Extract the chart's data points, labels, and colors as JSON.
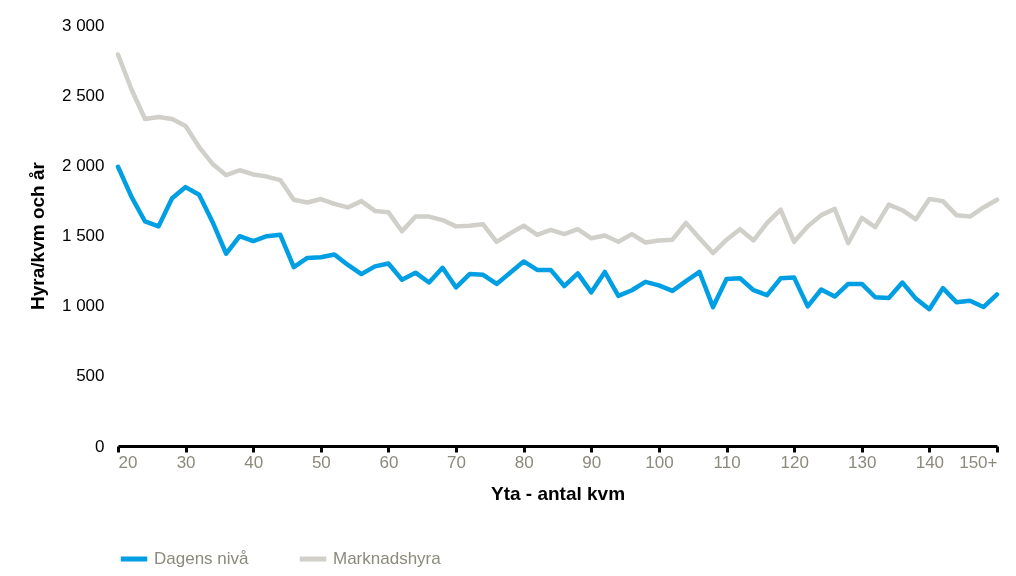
{
  "chart_data": {
    "type": "line",
    "xlabel": "Yta - antal kvm",
    "ylabel": "Hyra/kvm och år",
    "x": [
      20,
      22,
      24,
      26,
      28,
      30,
      32,
      34,
      36,
      38,
      40,
      42,
      44,
      46,
      48,
      50,
      52,
      54,
      56,
      58,
      60,
      62,
      64,
      66,
      68,
      70,
      72,
      74,
      76,
      78,
      80,
      82,
      84,
      86,
      88,
      90,
      92,
      94,
      96,
      98,
      100,
      102,
      104,
      106,
      108,
      110,
      112,
      114,
      116,
      118,
      120,
      122,
      124,
      126,
      128,
      130,
      132,
      134,
      136,
      138,
      140,
      142,
      144,
      146,
      148,
      150
    ],
    "series": [
      {
        "name": "Dagens nivå",
        "color": "#009fe3",
        "values": [
          1990,
          1775,
          1600,
          1565,
          1765,
          1845,
          1790,
          1595,
          1370,
          1495,
          1460,
          1495,
          1505,
          1275,
          1340,
          1345,
          1365,
          1290,
          1225,
          1280,
          1300,
          1185,
          1235,
          1165,
          1270,
          1130,
          1225,
          1220,
          1155,
          1235,
          1315,
          1255,
          1255,
          1140,
          1230,
          1095,
          1240,
          1070,
          1110,
          1170,
          1145,
          1105,
          1175,
          1240,
          990,
          1190,
          1195,
          1110,
          1075,
          1195,
          1200,
          995,
          1115,
          1065,
          1155,
          1155,
          1060,
          1055,
          1165,
          1050,
          975,
          1125,
          1025,
          1035,
          990,
          1080
        ]
      },
      {
        "name": "Marknadshyra",
        "color": "#d0cfca",
        "values": [
          2790,
          2540,
          2330,
          2345,
          2330,
          2280,
          2130,
          2010,
          1930,
          1965,
          1935,
          1920,
          1895,
          1755,
          1735,
          1760,
          1725,
          1700,
          1745,
          1675,
          1665,
          1530,
          1635,
          1635,
          1610,
          1565,
          1570,
          1580,
          1455,
          1515,
          1570,
          1505,
          1540,
          1510,
          1545,
          1480,
          1500,
          1455,
          1510,
          1450,
          1465,
          1470,
          1590,
          1480,
          1375,
          1470,
          1545,
          1465,
          1590,
          1685,
          1455,
          1565,
          1645,
          1690,
          1445,
          1625,
          1560,
          1720,
          1680,
          1615,
          1760,
          1745,
          1645,
          1635,
          1700,
          1755
        ]
      }
    ],
    "xlim": [
      20,
      150
    ],
    "xticks": [
      20,
      30,
      40,
      50,
      60,
      70,
      80,
      90,
      100,
      110,
      120,
      130,
      140,
      {
        "value": 150,
        "label": "150+"
      }
    ],
    "ylim": [
      0,
      3000
    ],
    "yticks": [
      0,
      {
        "value": 500,
        "label": "500"
      },
      {
        "value": 1000,
        "label": "1 000"
      },
      {
        "value": 1500,
        "label": "1 500"
      },
      {
        "value": 2000,
        "label": "2 000"
      },
      {
        "value": 2500,
        "label": "2 500"
      },
      {
        "value": 3000,
        "label": "3 000"
      }
    ],
    "grid": false,
    "legend": "bottom",
    "line_style": "solid",
    "marker": "none"
  }
}
